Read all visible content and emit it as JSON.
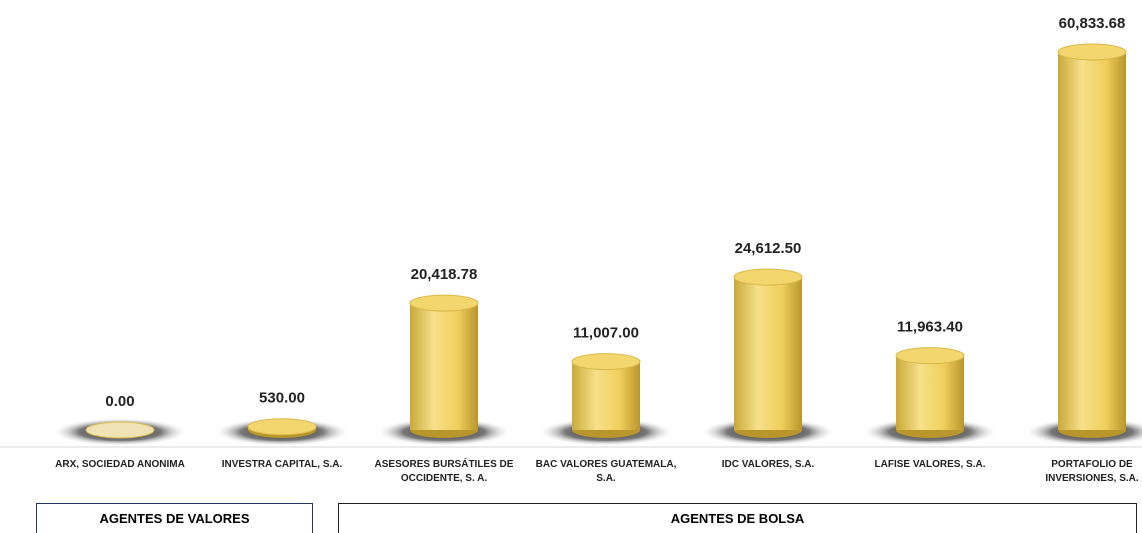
{
  "chart_data": {
    "type": "bar",
    "categories": [
      "ARX, SOCIEDAD ANONIMA",
      "INVESTRA CAPITAL, S.A.",
      "ASESORES BURSÁTILES DE OCCIDENTE, S. A.",
      "BAC VALORES GUATEMALA, S.A.",
      "IDC VALORES, S.A.",
      "LAFISE VALORES, S.A.",
      "PORTAFOLIO DE INVERSIONES, S.A."
    ],
    "values": [
      0,
      530,
      20418.78,
      11007,
      24612.5,
      11963.4,
      60833.68
    ],
    "value_labels": [
      "0.00",
      "530.00",
      "20,418.78",
      "11,007.00",
      "24,612.50",
      "11,963.40",
      "60,833.68"
    ],
    "color": "#f2d264",
    "groups": [
      "AGENTES DE VALORES",
      "AGENTES DE BOLSA"
    ]
  }
}
